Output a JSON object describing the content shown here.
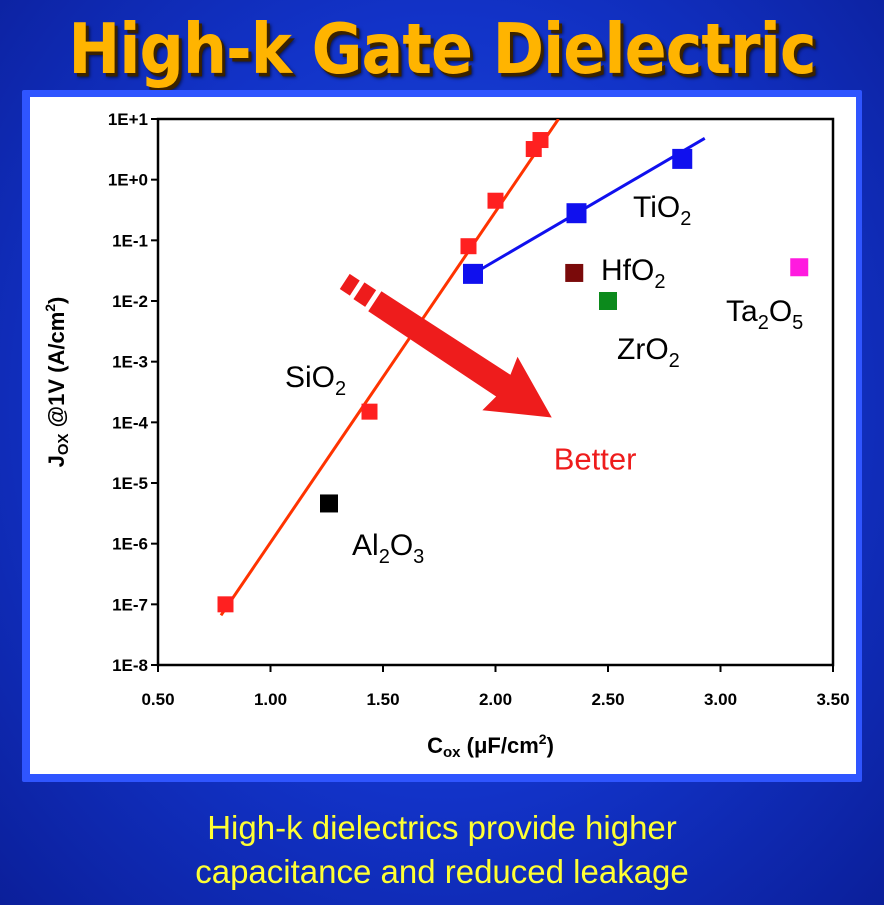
{
  "title": "High-k Gate Dielectric",
  "caption": {
    "line1": "High-k dielectrics provide higher",
    "line2": "capacitance and reduced leakage"
  },
  "chart_data": {
    "type": "scatter",
    "title": "",
    "xlabel": {
      "main": "C",
      "sub": "ox",
      "rest": " (μF/cm",
      "sup": "2",
      "end": ")"
    },
    "ylabel": {
      "main": "J",
      "sub": "OX",
      "rest": " @1V (A/cm",
      "sup": "2",
      "end": ")"
    },
    "xlim": [
      0.5,
      3.5
    ],
    "y_log_exponent_range": [
      -8,
      1
    ],
    "y_scale": "log",
    "x_ticks": [
      "0.50",
      "1.00",
      "1.50",
      "2.00",
      "2.50",
      "3.00",
      "3.50"
    ],
    "x_tick_values": [
      0.5,
      1.0,
      1.5,
      2.0,
      2.5,
      3.0,
      3.5
    ],
    "y_ticks": [
      "1E+1",
      "1E+0",
      "1E-1",
      "1E-2",
      "1E-3",
      "1E-4",
      "1E-5",
      "1E-6",
      "1E-7",
      "1E-8"
    ],
    "y_tick_exponents": [
      1,
      0,
      -1,
      -2,
      -3,
      -4,
      -5,
      -6,
      -7,
      -8
    ],
    "series": [
      {
        "name": "SiO2",
        "label_parts": [
          "SiO",
          "2",
          ""
        ],
        "color": "#ff2020",
        "points": [
          {
            "x": 0.8,
            "y": 1e-07
          },
          {
            "x": 1.44,
            "y": 0.00015
          },
          {
            "x": 1.88,
            "y": 0.08
          },
          {
            "x": 2.0,
            "y": 0.45
          },
          {
            "x": 2.17,
            "y": 3.2
          },
          {
            "x": 2.2,
            "y": 4.5
          }
        ],
        "fit": {
          "from": [
            0.78,
            6.6e-08
          ],
          "to": [
            2.28,
            10
          ],
          "color": "#ff3300"
        }
      },
      {
        "name": "TiO2",
        "label_parts": [
          "TiO",
          "2",
          ""
        ],
        "color": "#1010ee",
        "points": [
          {
            "x": 1.9,
            "y": 0.028
          },
          {
            "x": 2.36,
            "y": 0.28
          },
          {
            "x": 2.83,
            "y": 2.2
          }
        ],
        "fit": {
          "from": [
            1.9,
            0.028
          ],
          "to": [
            2.93,
            4.8
          ],
          "color": "#1010ee"
        }
      },
      {
        "name": "HfO2",
        "label_parts": [
          "HfO",
          "2",
          ""
        ],
        "color": "#7a0a0a",
        "points": [
          {
            "x": 2.35,
            "y": 0.029
          }
        ]
      },
      {
        "name": "ZrO2",
        "label_parts": [
          "ZrO",
          "2",
          ""
        ],
        "color": "#0c8a1c",
        "points": [
          {
            "x": 2.5,
            "y": 0.01
          }
        ]
      },
      {
        "name": "Ta2O5",
        "label_parts": [
          "Ta",
          "2",
          "O",
          "5"
        ],
        "color": "#ff1adf",
        "points": [
          {
            "x": 3.35,
            "y": 0.036
          }
        ]
      },
      {
        "name": "Al2O3",
        "label_parts": [
          "Al",
          "2",
          "O",
          "3"
        ],
        "color": "#000000",
        "points": [
          {
            "x": 1.26,
            "y": 4.6e-06
          }
        ]
      }
    ],
    "annotation": {
      "text": "Better",
      "color": "#ee1c1c",
      "arrow_from": [
        1.33,
        0.021
      ],
      "arrow_to": [
        2.25,
        0.00012
      ]
    }
  }
}
